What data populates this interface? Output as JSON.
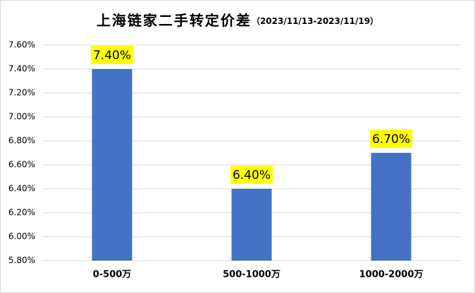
{
  "chart_data": {
    "type": "bar",
    "title": "上海链家二手转定价差",
    "subtitle": "（2023/11/13-2023/11/19）",
    "categories": [
      "0-500万",
      "500-1000万",
      "1000-2000万"
    ],
    "values": [
      7.4,
      6.4,
      6.7
    ],
    "value_labels": [
      "7.40%",
      "6.40%",
      "6.70%"
    ],
    "color": "#4472c4",
    "ylim": [
      5.8,
      7.6
    ],
    "yticks": [
      {
        "value": 5.8,
        "label": "5.80%"
      },
      {
        "value": 6.0,
        "label": "6.00%"
      },
      {
        "value": 6.2,
        "label": "6.20%"
      },
      {
        "value": 6.4,
        "label": "6.40%"
      },
      {
        "value": 6.6,
        "label": "6.60%"
      },
      {
        "value": 6.8,
        "label": "6.80%"
      },
      {
        "value": 7.0,
        "label": "7.00%"
      },
      {
        "value": 7.2,
        "label": "7.20%"
      },
      {
        "value": 7.4,
        "label": "7.40%"
      },
      {
        "value": 7.6,
        "label": "7.60%"
      }
    ],
    "grid": true
  }
}
